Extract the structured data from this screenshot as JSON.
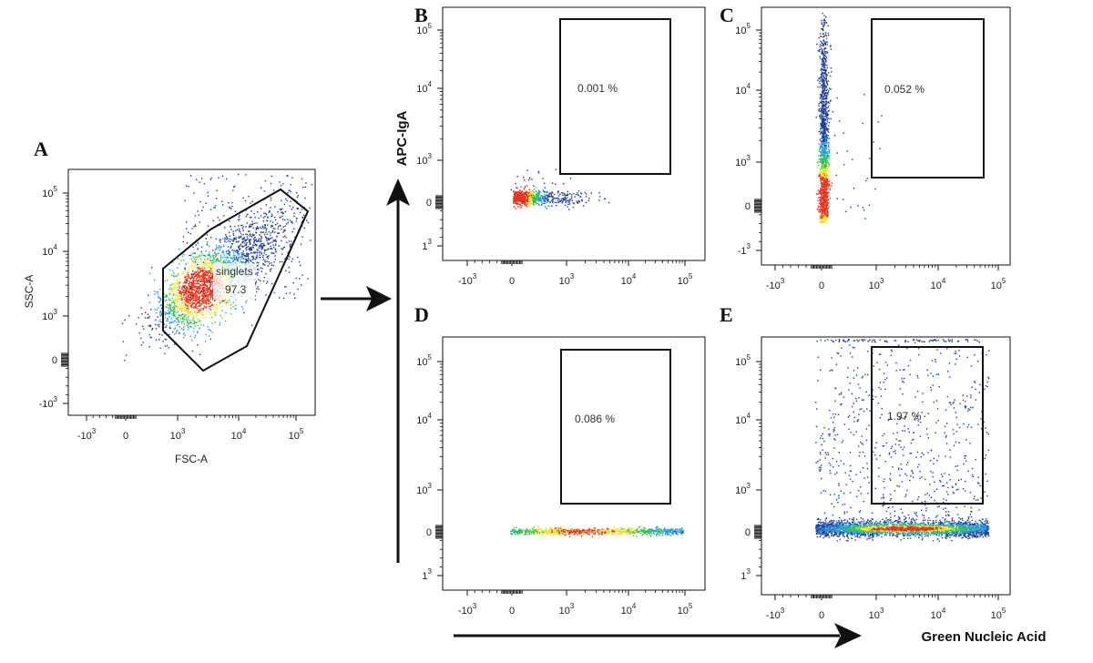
{
  "figure": {
    "colors": {
      "low": "#1f3c9a",
      "mid1": "#2b9bd8",
      "mid2": "#34c24a",
      "mid3": "#f2e42b",
      "high": "#e8341c",
      "gate": "#111111",
      "axis": "#111111"
    },
    "arrow_right": "arrow-right-icon",
    "arrow_up": "arrow-up-icon",
    "y_axis_title": "APC-IgA",
    "x_axis_title": "Green Nucleic Acid"
  },
  "chart_data": [
    {
      "id": "A",
      "type": "scatter",
      "title": "",
      "letter": "A",
      "xlabel": "FSC-A",
      "ylabel": "SSC-A",
      "x_ticks": [
        {
          "base": "-10",
          "exp": "3"
        },
        {
          "base": "0",
          "exp": ""
        },
        {
          "base": "10",
          "exp": "3"
        },
        {
          "base": "10",
          "exp": "4"
        },
        {
          "base": "10",
          "exp": "5"
        }
      ],
      "y_ticks": [
        {
          "base": "-10",
          "exp": "3"
        },
        {
          "base": "0",
          "exp": ""
        },
        {
          "base": "10",
          "exp": "3"
        },
        {
          "base": "10",
          "exp": "4"
        },
        {
          "base": "10",
          "exp": "5"
        }
      ],
      "gate": {
        "name": "singlets",
        "percent": "97.3",
        "shape": "polygon"
      },
      "population": "diagonal FSC/SSC cloud, densest near FSC 10^3.2, SSC 10^3.4"
    },
    {
      "id": "B",
      "type": "scatter",
      "letter": "B",
      "xlabel": "",
      "ylabel": "",
      "x_ticks": [
        {
          "base": "-10",
          "exp": "3"
        },
        {
          "base": "0",
          "exp": ""
        },
        {
          "base": "10",
          "exp": "3"
        },
        {
          "base": "10",
          "exp": "4"
        },
        {
          "base": "10",
          "exp": "5"
        }
      ],
      "y_ticks": [
        {
          "base": "1",
          "exp": "3"
        },
        {
          "base": "0",
          "exp": ""
        },
        {
          "base": "10",
          "exp": "3"
        },
        {
          "base": "10",
          "exp": "4"
        },
        {
          "base": "10",
          "exp": "5"
        }
      ],
      "gate": {
        "percent": "0.001 %",
        "shape": "rectangle"
      },
      "population": "compact blob near origin"
    },
    {
      "id": "C",
      "type": "scatter",
      "letter": "C",
      "xlabel": "",
      "ylabel": "",
      "x_ticks": [
        {
          "base": "-10",
          "exp": "3"
        },
        {
          "base": "0",
          "exp": ""
        },
        {
          "base": "10",
          "exp": "3"
        },
        {
          "base": "10",
          "exp": "4"
        },
        {
          "base": "10",
          "exp": "5"
        }
      ],
      "y_ticks": [
        {
          "base": "-1",
          "exp": "3"
        },
        {
          "base": "0",
          "exp": ""
        },
        {
          "base": "10",
          "exp": "3"
        },
        {
          "base": "10",
          "exp": "4"
        },
        {
          "base": "10",
          "exp": "5"
        }
      ],
      "gate": {
        "percent": "0.052 %",
        "shape": "rectangle"
      },
      "population": "vertical streak at x = 0 spanning full APC range"
    },
    {
      "id": "D",
      "type": "scatter",
      "letter": "D",
      "xlabel": "",
      "ylabel": "",
      "x_ticks": [
        {
          "base": "-10",
          "exp": "3"
        },
        {
          "base": "0",
          "exp": ""
        },
        {
          "base": "10",
          "exp": "3"
        },
        {
          "base": "10",
          "exp": "4"
        },
        {
          "base": "10",
          "exp": "5"
        }
      ],
      "y_ticks": [
        {
          "base": "1",
          "exp": "3"
        },
        {
          "base": "0",
          "exp": ""
        },
        {
          "base": "10",
          "exp": "3"
        },
        {
          "base": "10",
          "exp": "4"
        },
        {
          "base": "10",
          "exp": "5"
        }
      ],
      "gate": {
        "percent": "0.086 %",
        "shape": "rectangle"
      },
      "population": "thin horizontal band at APC = 0 from 0 to 10^5"
    },
    {
      "id": "E",
      "type": "scatter",
      "letter": "E",
      "xlabel": "",
      "ylabel": "",
      "x_ticks": [
        {
          "base": "-10",
          "exp": "3"
        },
        {
          "base": "0",
          "exp": ""
        },
        {
          "base": "10",
          "exp": "3"
        },
        {
          "base": "10",
          "exp": "4"
        },
        {
          "base": "10",
          "exp": "5"
        }
      ],
      "y_ticks": [
        {
          "base": "1",
          "exp": "3"
        },
        {
          "base": "0",
          "exp": ""
        },
        {
          "base": "10",
          "exp": "3"
        },
        {
          "base": "10",
          "exp": "4"
        },
        {
          "base": "10",
          "exp": "5"
        }
      ],
      "gate": {
        "percent": "1.97 %",
        "shape": "rectangle"
      },
      "population": "thick horizontal band at APC = 0 plus sparse scatter above"
    }
  ]
}
